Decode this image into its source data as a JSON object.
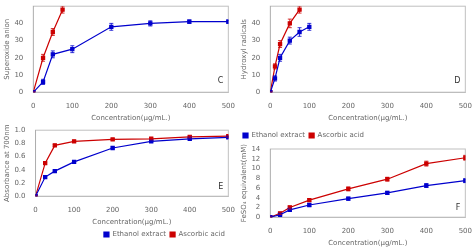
{
  "chart_data": [
    {
      "type": "line",
      "marker": "square",
      "grid": false,
      "xlabel": "Concentration(μg/mL.)",
      "ylabel": "Superoxide anion",
      "annotations": [
        "C"
      ],
      "xlim": [
        0,
        500
      ],
      "ylim": [
        0,
        50
      ],
      "xticks": [
        0,
        100,
        200,
        300,
        400,
        500
      ],
      "yticks": [
        0,
        10,
        20,
        30,
        40
      ],
      "series": [
        {
          "name": "Ethanol extract",
          "color": "#0000CD",
          "x": [
            0,
            25,
            50,
            100,
            200,
            300,
            400,
            500
          ],
          "values": [
            0,
            6,
            22,
            25,
            38,
            40,
            41,
            41
          ],
          "errors": [
            0,
            1.5,
            2,
            2,
            2,
            1.5,
            1.0,
            1.0
          ]
        },
        {
          "name": "Ascorbic acid",
          "color": "#CC0000",
          "x": [
            0,
            25,
            50,
            75
          ],
          "values": [
            0,
            20,
            35,
            48
          ],
          "errors": [
            0,
            2,
            2,
            2
          ]
        }
      ]
    },
    {
      "type": "line",
      "marker": "square",
      "grid": false,
      "xlabel": "Concentration(μg/mL.)",
      "ylabel": "Hydroxyl radicals",
      "annotations": [
        "D"
      ],
      "xlim": [
        0,
        500
      ],
      "ylim": [
        0,
        50
      ],
      "xticks": [
        0,
        100,
        200,
        300,
        400,
        500
      ],
      "yticks": [
        0,
        10,
        20,
        30,
        40
      ],
      "series": [
        {
          "name": "Ethanol extract",
          "color": "#0000CD",
          "x": [
            0,
            12,
            25,
            50,
            75,
            100
          ],
          "values": [
            0,
            8,
            20,
            30,
            35,
            38
          ],
          "errors": [
            0,
            1.5,
            2,
            2,
            2.5,
            2
          ]
        },
        {
          "name": "Ascorbic acid",
          "color": "#CC0000",
          "x": [
            0,
            12,
            25,
            50,
            75
          ],
          "values": [
            0,
            15,
            28,
            40,
            48
          ],
          "errors": [
            0,
            1.5,
            2,
            2.5,
            2
          ]
        }
      ]
    },
    {
      "type": "line",
      "marker": "square",
      "grid": false,
      "legend": "lower right",
      "xlabel": "Concentration(μg/mL.)",
      "ylabel": "Absorbance at 700nm",
      "annotations": [
        "E"
      ],
      "xlim": [
        0,
        500
      ],
      "ylim": [
        0.0,
        1.0
      ],
      "xticks": [
        0,
        100,
        200,
        300,
        400,
        500
      ],
      "yticks": [
        {
          "value": 0.0,
          "label": "0.0"
        },
        0.2,
        0.4,
        0.6,
        0.8,
        {
          "value": 1.0,
          "label": "1.0"
        }
      ],
      "series": [
        {
          "name": "Ethanol extract",
          "color": "#0000CD",
          "x": [
            0,
            25,
            50,
            100,
            200,
            300,
            400,
            500
          ],
          "values": [
            0.0,
            0.29,
            0.38,
            0.52,
            0.73,
            0.83,
            0.87,
            0.89
          ],
          "errors": [
            0,
            0.015,
            0.015,
            0.015,
            0.015,
            0.015,
            0.015,
            0.015
          ]
        },
        {
          "name": "Ascorbic acid",
          "color": "#CC0000",
          "x": [
            0,
            25,
            50,
            100,
            200,
            300,
            400,
            500
          ],
          "values": [
            0.0,
            0.5,
            0.77,
            0.83,
            0.86,
            0.87,
            0.9,
            0.91
          ],
          "errors": [
            0,
            0.015,
            0.015,
            0.015,
            0.015,
            0.015,
            0.015,
            0.015
          ]
        }
      ]
    },
    {
      "type": "line",
      "marker": "square",
      "grid": false,
      "legend": "upper left",
      "xlabel": "Concentration(μg/mL.)",
      "ylabel": "FeSO₄ equivalent(mM)",
      "annotations": [
        "F"
      ],
      "xlim": [
        0,
        500
      ],
      "ylim": [
        0,
        14
      ],
      "xticks": [
        0,
        100,
        200,
        300,
        400,
        500
      ],
      "yticks": [
        0,
        2,
        4,
        6,
        8,
        10,
        12,
        14
      ],
      "series": [
        {
          "name": "Ethanol extract",
          "color": "#0000CD",
          "x": [
            0,
            25,
            50,
            100,
            200,
            300,
            400,
            500
          ],
          "values": [
            0,
            0.5,
            1.5,
            2.5,
            3.8,
            5.0,
            6.5,
            7.5
          ],
          "errors": [
            0,
            0.2,
            0.2,
            0.3,
            0.3,
            0.3,
            0.4,
            0.4
          ]
        },
        {
          "name": "Ascorbic acid",
          "color": "#CC0000",
          "x": [
            0,
            25,
            50,
            100,
            200,
            300,
            400,
            500
          ],
          "values": [
            0,
            0.8,
            2.0,
            3.5,
            5.8,
            7.8,
            11.0,
            12.2
          ],
          "errors": [
            0,
            0.2,
            0.3,
            0.3,
            0.4,
            0.4,
            0.5,
            0.5
          ]
        }
      ]
    }
  ]
}
